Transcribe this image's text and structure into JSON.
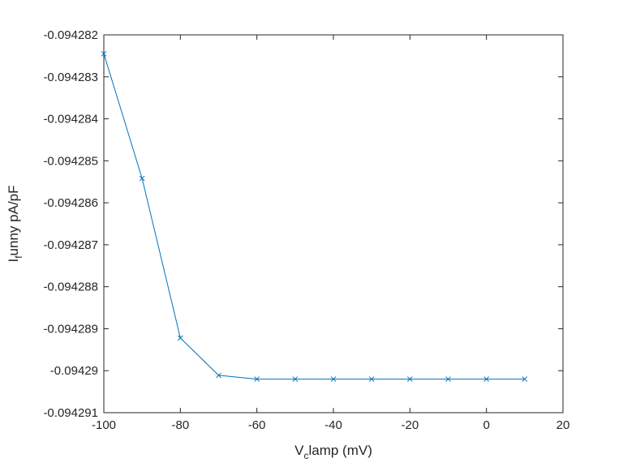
{
  "chart_data": {
    "type": "line",
    "title": "",
    "xlabel": {
      "main": "V",
      "subscript": "c",
      "rest": "lamp (mV)"
    },
    "ylabel": {
      "main": "I",
      "subscript": "f",
      "rest": "unny pA/pF"
    },
    "xlim": [
      -100,
      20
    ],
    "ylim": [
      -0.094291,
      -0.094282
    ],
    "xticks": [
      -100,
      -80,
      -60,
      -40,
      -20,
      0,
      20
    ],
    "xtick_labels": [
      "-100",
      "-80",
      "-60",
      "-40",
      "-20",
      "0",
      "20"
    ],
    "yticks": [
      -0.094282,
      -0.094283,
      -0.094284,
      -0.094285,
      -0.094286,
      -0.094287,
      -0.094288,
      -0.094289,
      -0.09429,
      -0.094291
    ],
    "ytick_labels": [
      "-0.094282",
      "-0.094283",
      "-0.094284",
      "-0.094285",
      "-0.094286",
      "-0.094287",
      "-0.094288",
      "-0.094289",
      "-0.09429",
      "-0.094291"
    ],
    "grid": false,
    "series": [
      {
        "marker": "x",
        "color": "#0072BD",
        "x": [
          -100,
          -90,
          -80,
          -70,
          -60,
          -50,
          -40,
          -30,
          -20,
          -10,
          0,
          10
        ],
        "y": [
          -0.09428245,
          -0.09428542,
          -0.09428922,
          -0.09429011,
          -0.0942902,
          -0.0942902,
          -0.0942902,
          -0.0942902,
          -0.0942902,
          -0.0942902,
          -0.0942902,
          -0.0942902
        ]
      }
    ]
  }
}
